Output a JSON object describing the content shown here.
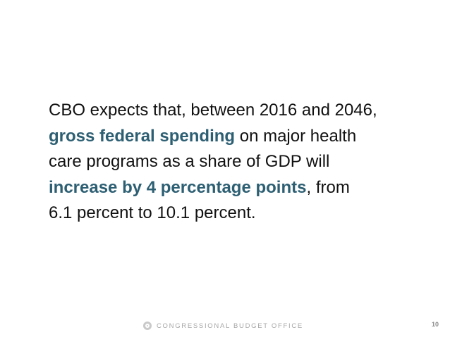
{
  "body": {
    "line1": "CBO expects that, between 2016 and 2046,",
    "line2_highlight": "gross federal spending",
    "line2_rest": " on major health",
    "line3": "care programs as a share of GDP will",
    "line4_highlight": "increase by 4 percentage points",
    "line4_rest": ", from",
    "line5": "6.1 percent to 10.1 percent."
  },
  "footer": {
    "organization": "CONGRESSIONAL BUDGET OFFICE",
    "page_number": "10"
  },
  "colors": {
    "highlight": "#2d5f73",
    "text": "#111111",
    "footer_text": "#a8a8a8"
  }
}
